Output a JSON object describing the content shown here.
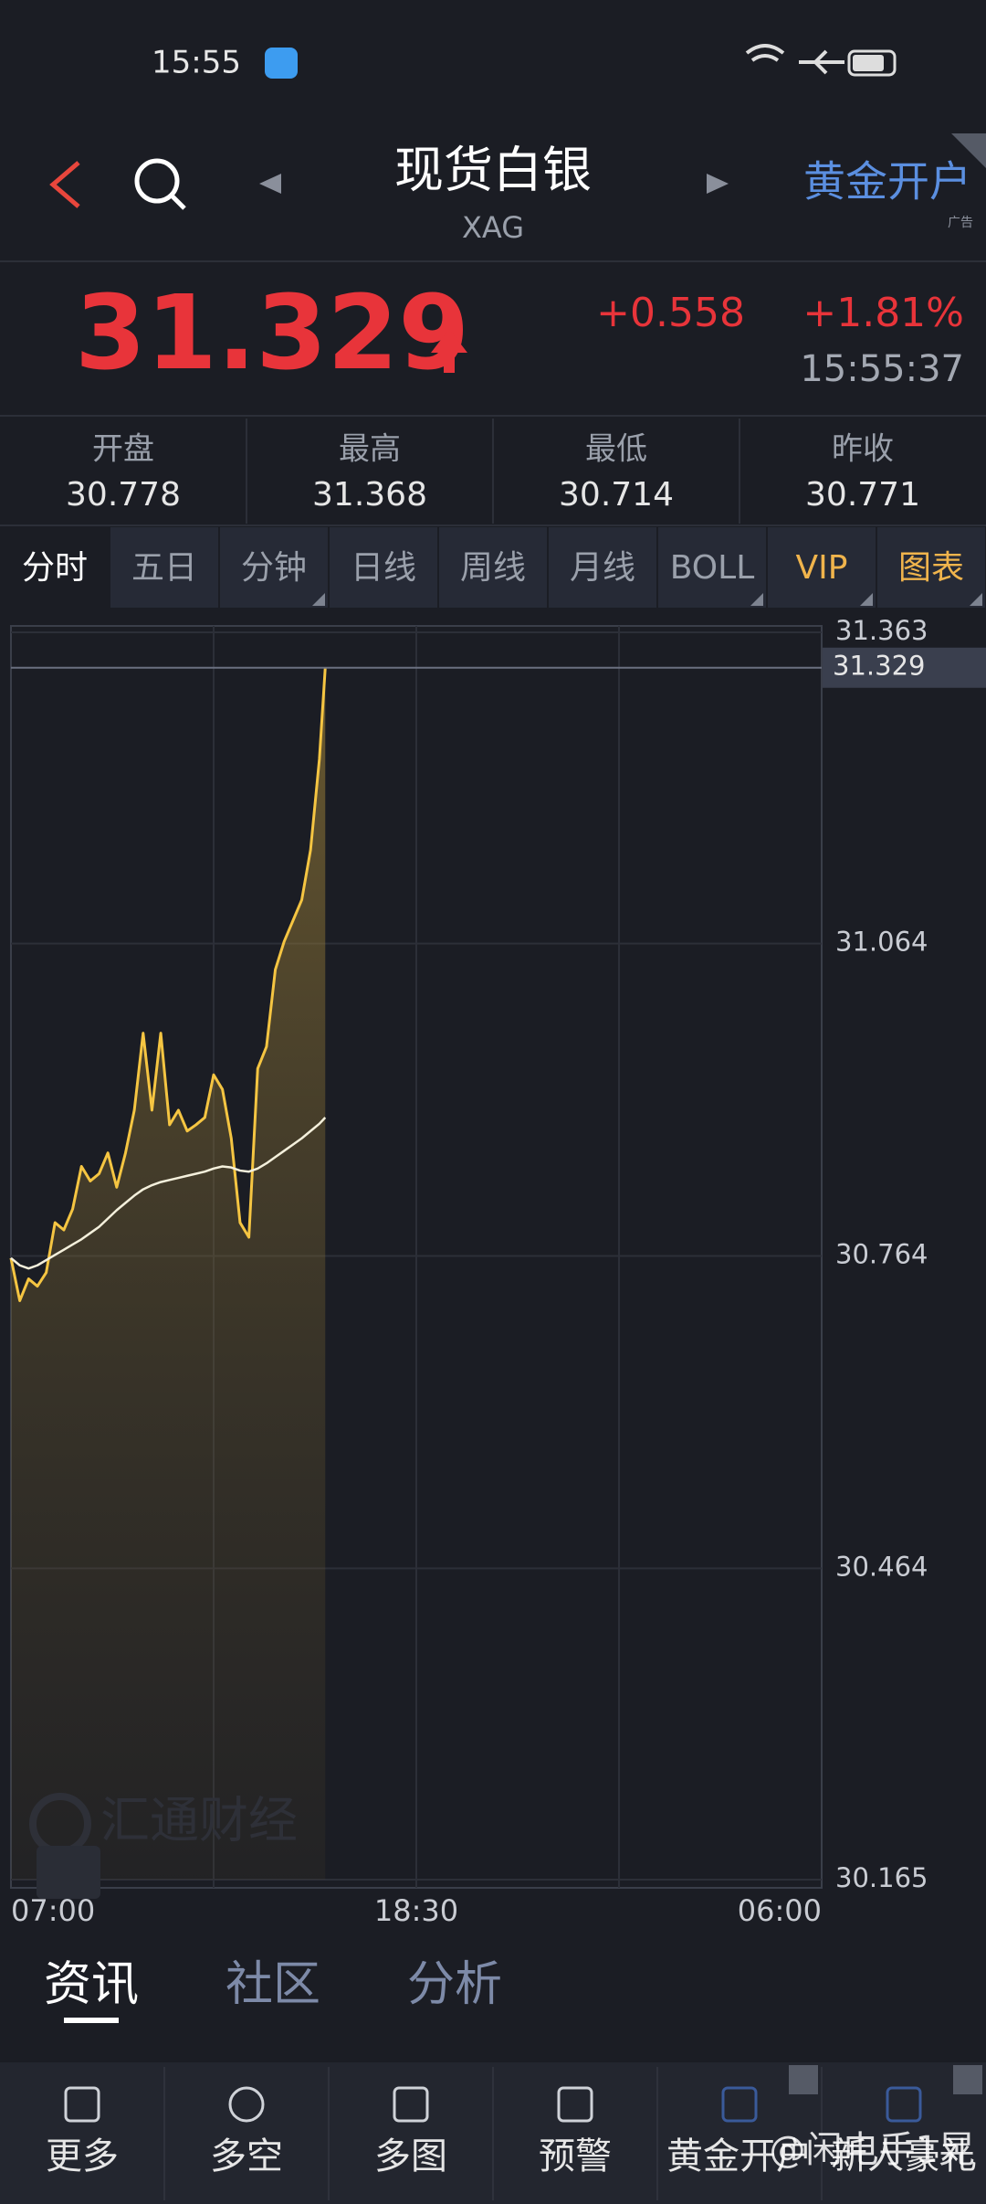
{
  "status_bar": {
    "time": "15:55"
  },
  "header": {
    "title": "现货白银",
    "symbol": "XAG",
    "ad": "黄金开户",
    "ad_tag": "广告"
  },
  "quote": {
    "price": "31.329",
    "change": "+0.558",
    "change_pct": "+1.81%",
    "time": "15:55:37"
  },
  "stats": [
    {
      "label": "开盘",
      "value": "30.778"
    },
    {
      "label": "最高",
      "value": "31.368"
    },
    {
      "label": "最低",
      "value": "30.714"
    },
    {
      "label": "昨收",
      "value": "30.771"
    }
  ],
  "period_tabs": [
    "分时",
    "五日",
    "分钟",
    "日线",
    "周线",
    "月线",
    "BOLL",
    "VIP",
    "图表"
  ],
  "chart_data": {
    "type": "line",
    "x": [
      "07:00",
      "07:15",
      "07:30",
      "07:45",
      "08:00",
      "08:15",
      "08:30",
      "08:45",
      "09:00",
      "09:15",
      "09:30",
      "09:45",
      "10:00",
      "10:15",
      "10:30",
      "10:45",
      "11:00",
      "11:15",
      "11:30",
      "11:45",
      "12:00",
      "12:15",
      "12:30",
      "12:45",
      "13:00",
      "13:15",
      "13:30",
      "13:45",
      "14:00",
      "14:15",
      "14:30",
      "14:45",
      "15:00",
      "15:15",
      "15:30",
      "15:45",
      "15:55"
    ],
    "series": [
      {
        "color": "#f5c542",
        "values": [
          30.762,
          30.721,
          30.742,
          30.735,
          30.748,
          30.796,
          30.789,
          30.809,
          30.85,
          30.836,
          30.843,
          30.863,
          30.83,
          30.863,
          30.904,
          30.978,
          30.904,
          30.978,
          30.89,
          30.904,
          30.884,
          30.89,
          30.897,
          30.938,
          30.924,
          30.877,
          30.796,
          30.782,
          30.944,
          30.965,
          31.039,
          31.066,
          31.086,
          31.106,
          31.154,
          31.241,
          31.329
        ]
      },
      {
        "color": "#f4f0dc",
        "values": [
          30.762,
          30.755,
          30.752,
          30.755,
          30.76,
          30.765,
          30.77,
          30.775,
          30.78,
          30.786,
          30.792,
          30.8,
          30.808,
          30.815,
          30.822,
          30.828,
          30.832,
          30.835,
          30.837,
          30.839,
          30.841,
          30.843,
          30.845,
          30.848,
          30.85,
          30.849,
          30.846,
          30.845,
          30.848,
          30.853,
          30.859,
          30.865,
          30.871,
          30.877,
          30.884,
          30.891,
          30.897
        ]
      }
    ],
    "xlim": [
      "07:00",
      "06:00"
    ],
    "xticks": [
      "07:00",
      "18:30",
      "06:00"
    ],
    "ylim": [
      30.165,
      31.363
    ],
    "yticks": [
      31.363,
      31.064,
      30.764,
      30.464,
      30.165
    ],
    "current": 31.329,
    "grid": true
  },
  "watermarks": [
    "汇通财经",
    "@闲电手1晃"
  ],
  "section_tabs": [
    "资讯",
    "社区",
    "分析"
  ],
  "nav": [
    "更多",
    "多空",
    "多图",
    "预警",
    "黄金开户",
    "新人豪礼"
  ]
}
